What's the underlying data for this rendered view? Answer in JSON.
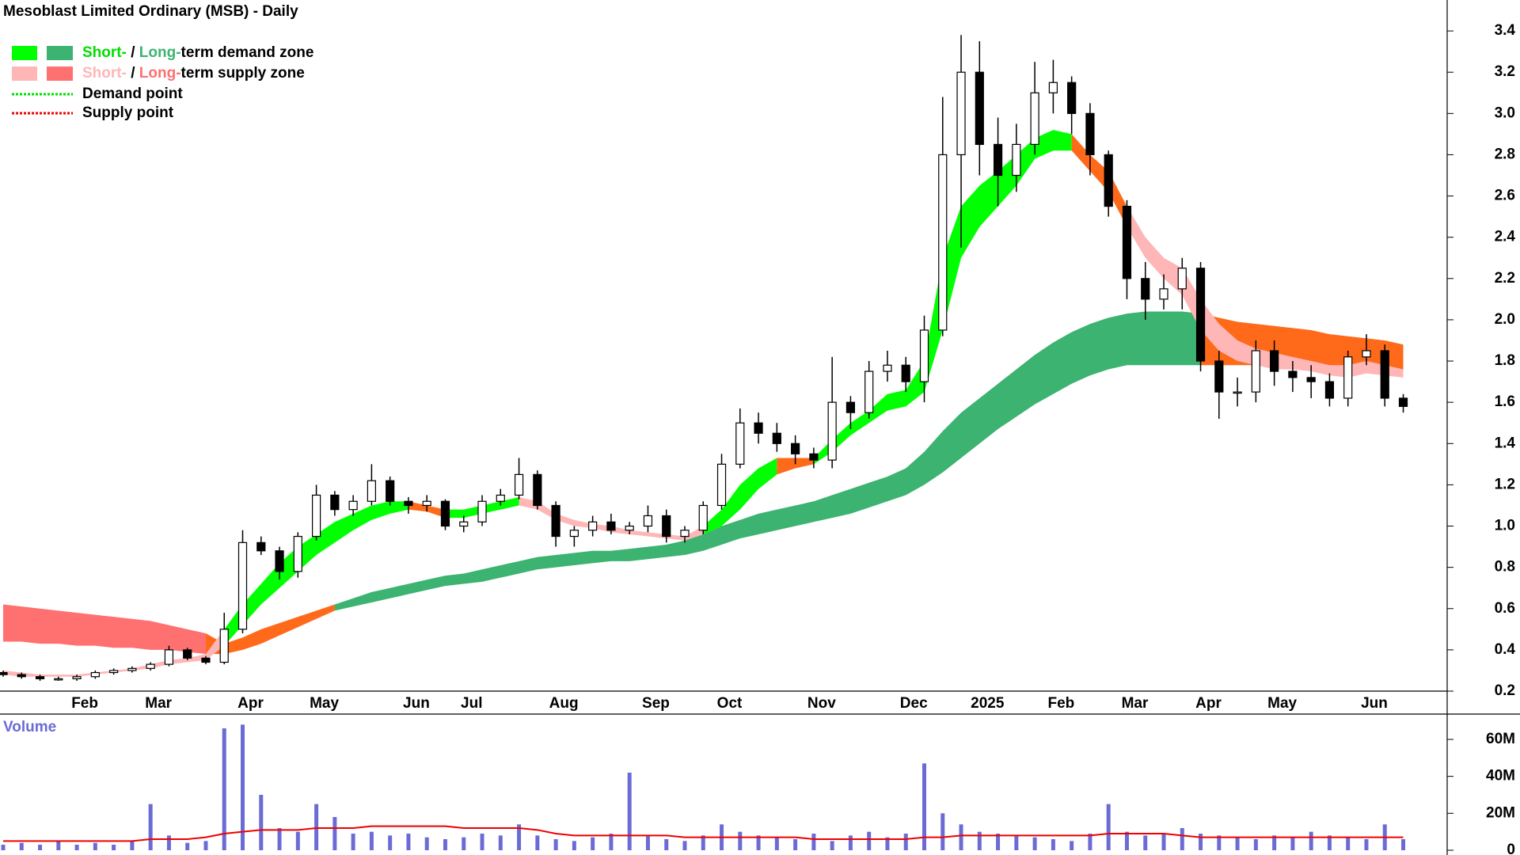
{
  "chart_data": {
    "type": "candlestick",
    "title": "Mesoblast Limited Ordinary (MSB) - Daily",
    "categories": [
      null,
      null,
      null,
      null,
      "Feb",
      null,
      null,
      null,
      "Mar",
      null,
      null,
      null,
      null,
      "Apr",
      null,
      null,
      null,
      "May",
      null,
      null,
      null,
      null,
      "Jun",
      null,
      null,
      "Jul",
      null,
      null,
      null,
      null,
      "Aug",
      null,
      null,
      null,
      null,
      "Sep",
      null,
      null,
      null,
      "Oct",
      null,
      null,
      null,
      null,
      "Nov",
      null,
      null,
      null,
      null,
      "Dec",
      null,
      null,
      null,
      "2025",
      null,
      null,
      null,
      "Feb",
      null,
      null,
      null,
      "Mar",
      null,
      null,
      null,
      "Apr",
      null,
      null,
      null,
      "May",
      null,
      null,
      null,
      null,
      "Jun",
      null,
      null
    ],
    "open": [
      0.29,
      0.28,
      0.27,
      0.26,
      0.26,
      0.27,
      0.29,
      0.3,
      0.31,
      0.33,
      0.4,
      0.36,
      0.34,
      0.5,
      0.92,
      0.88,
      0.78,
      0.95,
      1.15,
      1.08,
      1.12,
      1.22,
      1.12,
      1.1,
      1.12,
      1.0,
      1.02,
      1.12,
      1.15,
      1.25,
      1.1,
      0.95,
      0.98,
      1.02,
      0.98,
      1.0,
      1.05,
      0.95,
      0.98,
      1.1,
      1.3,
      1.5,
      1.45,
      1.4,
      1.35,
      1.32,
      1.6,
      1.55,
      1.75,
      1.78,
      1.7,
      1.95,
      2.8,
      3.2,
      2.85,
      2.7,
      2.85,
      3.1,
      3.15,
      3.0,
      2.8,
      2.55,
      2.2,
      2.1,
      2.15,
      2.25,
      1.8,
      1.65,
      1.65,
      1.85,
      1.75,
      1.72,
      1.7,
      1.62,
      1.82,
      1.85,
      1.62
    ],
    "high": [
      0.3,
      0.29,
      0.28,
      0.27,
      0.28,
      0.3,
      0.31,
      0.32,
      0.34,
      0.42,
      0.41,
      0.37,
      0.58,
      0.98,
      0.95,
      0.9,
      0.97,
      1.2,
      1.17,
      1.15,
      1.3,
      1.24,
      1.14,
      1.15,
      1.13,
      1.05,
      1.15,
      1.18,
      1.33,
      1.27,
      1.12,
      1.0,
      1.05,
      1.06,
      1.02,
      1.1,
      1.08,
      1.0,
      1.12,
      1.35,
      1.57,
      1.55,
      1.5,
      1.44,
      1.38,
      1.82,
      1.63,
      1.8,
      1.85,
      1.82,
      2.02,
      3.08,
      3.38,
      3.35,
      2.98,
      2.95,
      3.25,
      3.26,
      3.18,
      3.05,
      2.82,
      2.58,
      2.28,
      2.22,
      2.3,
      2.28,
      1.85,
      1.72,
      1.9,
      1.9,
      1.8,
      1.78,
      1.74,
      1.85,
      1.93,
      1.88,
      1.64
    ],
    "low": [
      0.27,
      0.26,
      0.25,
      0.25,
      0.25,
      0.26,
      0.28,
      0.29,
      0.3,
      0.32,
      0.35,
      0.33,
      0.33,
      0.48,
      0.86,
      0.74,
      0.75,
      0.93,
      1.05,
      1.05,
      1.1,
      1.1,
      1.06,
      1.07,
      0.98,
      0.97,
      1.0,
      1.1,
      1.13,
      1.08,
      0.9,
      0.9,
      0.95,
      0.96,
      0.96,
      0.97,
      0.92,
      0.92,
      0.96,
      1.08,
      1.28,
      1.4,
      1.36,
      1.3,
      1.28,
      1.28,
      1.47,
      1.52,
      1.7,
      1.65,
      1.6,
      1.92,
      2.35,
      2.7,
      2.55,
      2.62,
      2.8,
      3.0,
      2.9,
      2.7,
      2.5,
      2.1,
      2.0,
      2.05,
      2.05,
      1.75,
      1.52,
      1.58,
      1.6,
      1.68,
      1.65,
      1.62,
      1.58,
      1.58,
      1.78,
      1.58,
      1.55
    ],
    "close": [
      0.28,
      0.27,
      0.26,
      0.26,
      0.27,
      0.29,
      0.3,
      0.31,
      0.33,
      0.4,
      0.36,
      0.34,
      0.5,
      0.92,
      0.88,
      0.78,
      0.95,
      1.15,
      1.08,
      1.12,
      1.22,
      1.12,
      1.1,
      1.12,
      1.0,
      1.02,
      1.12,
      1.15,
      1.25,
      1.1,
      0.95,
      0.98,
      1.02,
      0.98,
      1.0,
      1.05,
      0.95,
      0.98,
      1.1,
      1.3,
      1.5,
      1.45,
      1.4,
      1.35,
      1.32,
      1.6,
      1.55,
      1.75,
      1.78,
      1.7,
      1.95,
      2.8,
      3.2,
      2.85,
      2.7,
      2.85,
      3.1,
      3.15,
      3.0,
      2.8,
      2.55,
      2.2,
      2.1,
      2.15,
      2.25,
      1.8,
      1.65,
      1.65,
      1.85,
      1.75,
      1.72,
      1.7,
      1.62,
      1.82,
      1.85,
      1.62,
      1.58
    ],
    "short_zone": {
      "upper": [
        0.3,
        0.29,
        0.28,
        0.28,
        0.28,
        0.29,
        0.3,
        0.31,
        0.33,
        0.35,
        0.36,
        0.38,
        0.5,
        0.62,
        0.72,
        0.82,
        0.9,
        0.96,
        1.02,
        1.06,
        1.1,
        1.12,
        1.12,
        1.1,
        1.08,
        1.08,
        1.1,
        1.12,
        1.14,
        1.12,
        1.06,
        1.03,
        1.01,
        1.0,
        0.98,
        0.97,
        0.96,
        0.95,
        1.0,
        1.08,
        1.2,
        1.28,
        1.33,
        1.33,
        1.33,
        1.42,
        1.5,
        1.56,
        1.64,
        1.66,
        1.8,
        2.3,
        2.55,
        2.65,
        2.72,
        2.8,
        2.88,
        2.92,
        2.9,
        2.8,
        2.72,
        2.55,
        2.4,
        2.3,
        2.25,
        2.1,
        1.98,
        1.9,
        1.86,
        1.84,
        1.82,
        1.8,
        1.78,
        1.78,
        1.8,
        1.78,
        1.76
      ],
      "lower": [
        0.28,
        0.27,
        0.27,
        0.27,
        0.27,
        0.28,
        0.29,
        0.3,
        0.31,
        0.33,
        0.34,
        0.35,
        0.42,
        0.52,
        0.62,
        0.7,
        0.78,
        0.86,
        0.92,
        0.98,
        1.03,
        1.06,
        1.08,
        1.07,
        1.04,
        1.04,
        1.06,
        1.08,
        1.1,
        1.08,
        1.03,
        1.0,
        0.99,
        0.97,
        0.96,
        0.95,
        0.94,
        0.93,
        0.96,
        1.0,
        1.08,
        1.18,
        1.25,
        1.28,
        1.3,
        1.36,
        1.44,
        1.5,
        1.56,
        1.58,
        1.65,
        1.95,
        2.3,
        2.45,
        2.55,
        2.65,
        2.78,
        2.82,
        2.82,
        2.72,
        2.62,
        2.45,
        2.3,
        2.2,
        2.12,
        1.95,
        1.85,
        1.8,
        1.78,
        1.76,
        1.76,
        1.75,
        1.73,
        1.72,
        1.74,
        1.73,
        1.72
      ],
      "runs": [
        [
          0,
          12,
          "#ffb6b6"
        ],
        [
          12,
          22,
          "#00ff00"
        ],
        [
          22,
          24,
          "#ff6a1a"
        ],
        [
          24,
          28,
          "#00ff00"
        ],
        [
          28,
          38,
          "#ffb6b6"
        ],
        [
          38,
          42,
          "#00ff00"
        ],
        [
          42,
          44,
          "#ff6a1a"
        ],
        [
          44,
          58,
          "#00ff00"
        ],
        [
          58,
          61,
          "#ff6a1a"
        ],
        [
          61,
          76,
          "#ffb6b6"
        ]
      ]
    },
    "long_zone": {
      "upper": [
        0.62,
        0.61,
        0.6,
        0.59,
        0.58,
        0.57,
        0.56,
        0.55,
        0.54,
        0.52,
        0.5,
        0.48,
        0.43,
        0.46,
        0.5,
        0.53,
        0.56,
        0.59,
        0.62,
        0.65,
        0.68,
        0.7,
        0.72,
        0.74,
        0.76,
        0.77,
        0.79,
        0.81,
        0.83,
        0.85,
        0.86,
        0.87,
        0.88,
        0.88,
        0.89,
        0.9,
        0.91,
        0.93,
        0.96,
        1.0,
        1.03,
        1.06,
        1.08,
        1.1,
        1.12,
        1.15,
        1.18,
        1.21,
        1.24,
        1.28,
        1.36,
        1.46,
        1.55,
        1.62,
        1.69,
        1.76,
        1.83,
        1.89,
        1.94,
        1.98,
        2.01,
        2.03,
        2.04,
        2.04,
        2.04,
        2.03,
        2.01,
        1.99,
        1.98,
        1.97,
        1.96,
        1.95,
        1.93,
        1.92,
        1.91,
        1.9,
        1.88
      ],
      "lower": [
        0.44,
        0.44,
        0.43,
        0.43,
        0.42,
        0.42,
        0.41,
        0.41,
        0.4,
        0.4,
        0.39,
        0.38,
        0.38,
        0.4,
        0.43,
        0.47,
        0.51,
        0.55,
        0.59,
        0.61,
        0.63,
        0.65,
        0.67,
        0.69,
        0.71,
        0.72,
        0.73,
        0.75,
        0.77,
        0.79,
        0.8,
        0.81,
        0.82,
        0.83,
        0.83,
        0.84,
        0.85,
        0.86,
        0.88,
        0.91,
        0.94,
        0.96,
        0.98,
        1.0,
        1.02,
        1.04,
        1.06,
        1.09,
        1.12,
        1.15,
        1.2,
        1.26,
        1.33,
        1.4,
        1.47,
        1.53,
        1.59,
        1.64,
        1.69,
        1.73,
        1.76,
        1.78,
        1.78,
        1.78,
        1.78,
        1.78,
        1.78,
        1.78,
        1.78,
        1.78,
        1.78,
        1.77,
        1.77,
        1.76,
        1.76,
        1.75,
        1.74
      ],
      "runs": [
        [
          0,
          11,
          "#ff7070"
        ],
        [
          11,
          18,
          "#ff6a1a"
        ],
        [
          18,
          65,
          "#3cb371"
        ],
        [
          65,
          76,
          "#ff6a1a"
        ]
      ]
    },
    "ylim": [
      0.2,
      3.55
    ],
    "yticks": [
      0.2,
      0.4,
      0.6,
      0.8,
      {
        "value": 1,
        "label": "1.0"
      },
      1.2,
      1.4,
      1.6,
      1.8,
      {
        "value": 2,
        "label": "2.0"
      },
      2.2,
      2.4,
      2.6,
      2.8,
      {
        "value": 3,
        "label": "3.0"
      },
      3.2,
      3.4
    ],
    "legend": [
      {
        "swatches": [
          "#00ff00",
          "#3cb371"
        ],
        "parts": [
          {
            "text": "Short-",
            "color": "#00dd00"
          },
          {
            "text": " / ",
            "color": "#000000"
          },
          {
            "text": "Long-",
            "color": "#3cb371"
          },
          {
            "text": "term demand zone",
            "color": "#000000"
          }
        ]
      },
      {
        "swatches": [
          "#ffb6b6",
          "#ff7070"
        ],
        "parts": [
          {
            "text": "Short-",
            "color": "#ffb6b6"
          },
          {
            "text": " / ",
            "color": "#000000"
          },
          {
            "text": "Long-",
            "color": "#ff7070"
          },
          {
            "text": "term supply zone",
            "color": "#000000"
          }
        ]
      },
      {
        "dash": "#00dd00",
        "parts": [
          {
            "text": "Demand point",
            "color": "#000000"
          }
        ]
      },
      {
        "dash": "#ee0000",
        "parts": [
          {
            "text": "Supply point",
            "color": "#000000"
          }
        ]
      }
    ],
    "volume": {
      "title": "Volume",
      "color": "#6b6bd6",
      "average_color": "#ee0000",
      "values": [
        3,
        4,
        3,
        5,
        3,
        4,
        3,
        5,
        25,
        8,
        4,
        5,
        66,
        68,
        30,
        12,
        10,
        25,
        18,
        9,
        10,
        8,
        9,
        7,
        6,
        7,
        9,
        8,
        14,
        8,
        6,
        5,
        7,
        9,
        42,
        8,
        6,
        5,
        8,
        14,
        10,
        8,
        7,
        6,
        9,
        5,
        8,
        10,
        7,
        9,
        47,
        20,
        14,
        10,
        9,
        8,
        7,
        6,
        5,
        9,
        25,
        10,
        8,
        9,
        12,
        9,
        8,
        7,
        6,
        8,
        7,
        10,
        8,
        7,
        6,
        14,
        6
      ],
      "average": [
        5,
        5,
        5,
        5,
        5,
        5,
        5,
        5,
        6,
        6,
        6,
        7,
        9,
        10,
        11,
        11,
        11,
        12,
        12,
        12,
        13,
        13,
        13,
        13,
        13,
        12,
        12,
        12,
        12,
        11,
        9,
        8,
        8,
        8,
        8,
        8,
        8,
        7,
        7,
        7,
        7,
        7,
        7,
        7,
        6,
        6,
        6,
        6,
        6,
        6,
        7,
        7,
        8,
        8,
        8,
        8,
        8,
        8,
        8,
        8,
        9,
        9,
        9,
        9,
        8,
        7,
        7,
        7,
        7,
        7,
        7,
        7,
        7,
        7,
        7,
        7,
        7
      ],
      "ylim": [
        0,
        73.7
      ],
      "yticks": [
        0,
        {
          "value": 20,
          "label": "20M"
        },
        {
          "value": 40,
          "label": "40M"
        },
        {
          "value": 60,
          "label": "60M"
        }
      ]
    }
  }
}
